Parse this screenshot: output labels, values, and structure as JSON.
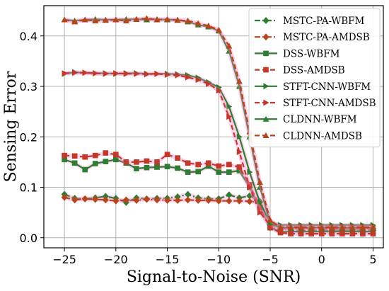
{
  "chart_data": {
    "type": "line",
    "xlabel": "Signal-to-Noise (SNR)",
    "ylabel": "Sensing Error",
    "xlim": [
      -27,
      6
    ],
    "ylim": [
      -0.02,
      0.46
    ],
    "xticks": [
      -25,
      -20,
      -15,
      -10,
      -5,
      0,
      5
    ],
    "xtick_labels": [
      "−25",
      "−20",
      "−15",
      "−10",
      "−5",
      "0",
      "5"
    ],
    "yticks": [
      0.0,
      0.1,
      0.2,
      0.3,
      0.4
    ],
    "ytick_labels": [
      "0.0",
      "0.1",
      "0.2",
      "0.3",
      "0.4"
    ],
    "grid": true,
    "legend_position": "top-right",
    "x": [
      -25,
      -24,
      -23,
      -22,
      -21,
      -20,
      -19,
      -18,
      -17,
      -16,
      -15,
      -14,
      -13,
      -12,
      -11,
      -10,
      -9,
      -8,
      -7,
      -6,
      -5,
      -4,
      -3,
      -2,
      -1,
      0,
      1,
      2,
      3,
      4,
      5
    ],
    "series": [
      {
        "name": "MSTC-PA-WBFM",
        "color": "#2e7d32",
        "marker": "diamond",
        "dash": "dashdot",
        "values": [
          0.086,
          0.078,
          0.077,
          0.079,
          0.082,
          0.078,
          0.07,
          0.079,
          0.077,
          0.078,
          0.078,
          0.081,
          0.086,
          0.079,
          0.077,
          0.077,
          0.085,
          0.079,
          0.083,
          0.072,
          0.02,
          0.018,
          0.015,
          0.015,
          0.015,
          0.015,
          0.015,
          0.015,
          0.015,
          0.015,
          0.015
        ]
      },
      {
        "name": "MSTC-PA-AMDSB",
        "color": "#b5451b",
        "marker": "diamond",
        "dash": "dashdot",
        "values": [
          0.08,
          0.075,
          0.077,
          0.076,
          0.075,
          0.073,
          0.075,
          0.074,
          0.076,
          0.075,
          0.074,
          0.074,
          0.075,
          0.074,
          0.074,
          0.073,
          0.073,
          0.073,
          0.072,
          0.07,
          0.03,
          0.018,
          0.018,
          0.018,
          0.018,
          0.018,
          0.018,
          0.018,
          0.018,
          0.018,
          0.018
        ]
      },
      {
        "name": "DSS-WBFM",
        "color": "#2e7d32",
        "marker": "square",
        "dash": "solid",
        "values": [
          0.155,
          0.148,
          0.135,
          0.147,
          0.151,
          0.155,
          0.148,
          0.137,
          0.139,
          0.14,
          0.141,
          0.138,
          0.13,
          0.131,
          0.142,
          0.13,
          0.13,
          0.133,
          0.1,
          0.06,
          0.02,
          0.012,
          0.012,
          0.012,
          0.012,
          0.012,
          0.012,
          0.012,
          0.012,
          0.012,
          0.012
        ]
      },
      {
        "name": "DSS-AMDSB",
        "color": "#c0392b",
        "marker": "square",
        "dash": "dashed",
        "values": [
          0.163,
          0.162,
          0.16,
          0.163,
          0.168,
          0.165,
          0.15,
          0.15,
          0.152,
          0.15,
          0.165,
          0.158,
          0.148,
          0.145,
          0.148,
          0.142,
          0.145,
          0.14,
          0.105,
          0.06,
          0.02,
          0.01,
          0.008,
          0.008,
          0.008,
          0.008,
          0.008,
          0.008,
          0.008,
          0.008,
          0.008
        ]
      },
      {
        "name": "STFT-CNN-WBFM",
        "color": "#2e7d32",
        "marker": "triangle-right",
        "dash": "solid",
        "values": [
          0.325,
          0.328,
          0.327,
          0.326,
          0.326,
          0.325,
          0.326,
          0.326,
          0.325,
          0.325,
          0.325,
          0.324,
          0.322,
          0.317,
          0.308,
          0.298,
          0.26,
          0.2,
          0.13,
          0.07,
          0.03,
          0.025,
          0.025,
          0.025,
          0.025,
          0.025,
          0.025,
          0.025,
          0.025,
          0.025,
          0.025
        ]
      },
      {
        "name": "STFT-CNN-AMDSB",
        "color": "#c0392b",
        "marker": "triangle-right",
        "dash": "dashed",
        "values": [
          0.326,
          0.327,
          0.327,
          0.326,
          0.325,
          0.326,
          0.325,
          0.325,
          0.324,
          0.325,
          0.323,
          0.322,
          0.318,
          0.313,
          0.305,
          0.292,
          0.24,
          0.17,
          0.1,
          0.05,
          0.025,
          0.022,
          0.022,
          0.022,
          0.022,
          0.022,
          0.022,
          0.022,
          0.022,
          0.022,
          0.022
        ]
      },
      {
        "name": "CLDNN-WBFM",
        "color": "#2e7d32",
        "marker": "triangle-up",
        "dash": "solid",
        "values": [
          0.432,
          0.43,
          0.432,
          0.433,
          0.432,
          0.432,
          0.433,
          0.433,
          0.432,
          0.433,
          0.432,
          0.432,
          0.428,
          0.422,
          0.418,
          0.41,
          0.37,
          0.3,
          0.2,
          0.1,
          0.03,
          0.02,
          0.02,
          0.02,
          0.02,
          0.02,
          0.02,
          0.02,
          0.02,
          0.02,
          0.02
        ]
      },
      {
        "name": "CLDNN-AMDSB",
        "color": "#b5451b",
        "marker": "triangle-up",
        "dash": "dashed",
        "values": [
          0.432,
          0.428,
          0.432,
          0.43,
          0.431,
          0.432,
          0.43,
          0.433,
          0.435,
          0.432,
          0.433,
          0.431,
          0.43,
          0.425,
          0.42,
          0.412,
          0.38,
          0.31,
          0.21,
          0.11,
          0.035,
          0.02,
          0.02,
          0.02,
          0.02,
          0.02,
          0.02,
          0.02,
          0.02,
          0.02,
          0.02
        ]
      }
    ]
  }
}
